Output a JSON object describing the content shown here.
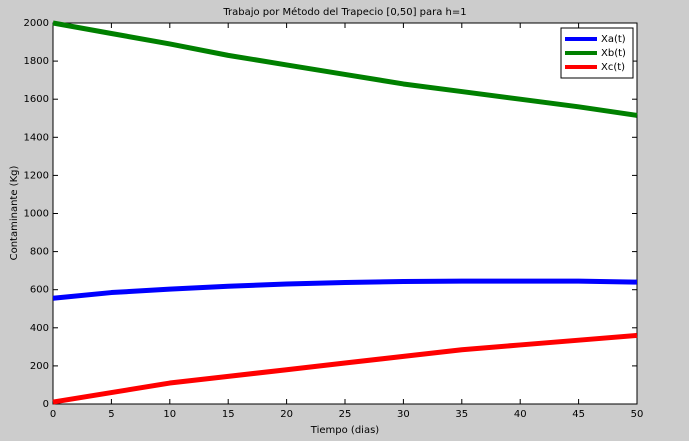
{
  "chart_data": {
    "type": "line",
    "title": "Trabajo por Método del Trapecio [0,50] para h=1",
    "x_label": "Tiempo (dias)",
    "y_label": "Contaminante (Kg)",
    "x": [
      0,
      5,
      10,
      15,
      20,
      25,
      30,
      35,
      40,
      45,
      50
    ],
    "series": [
      {
        "name": "Xa(t)",
        "color": "#0000ff",
        "values": [
          555,
          585,
          603,
          618,
          630,
          638,
          643,
          645,
          645,
          645,
          640
        ]
      },
      {
        "name": "Xb(t)",
        "color": "#008000",
        "values": [
          2000,
          1945,
          1890,
          1830,
          1780,
          1730,
          1680,
          1640,
          1600,
          1560,
          1515
        ]
      },
      {
        "name": "Xc(t)",
        "color": "#ff0000",
        "values": [
          10,
          60,
          110,
          145,
          180,
          215,
          250,
          285,
          310,
          335,
          360
        ]
      }
    ],
    "xlim": [
      0,
      50
    ],
    "xticks": [
      0,
      5,
      10,
      15,
      20,
      25,
      30,
      35,
      40,
      45,
      50
    ],
    "ylim": [
      0,
      2000
    ],
    "yticks": [
      0,
      200,
      400,
      600,
      800,
      1000,
      1200,
      1400,
      1600,
      1800,
      2000
    ],
    "grid": false,
    "legend": "upper right"
  }
}
